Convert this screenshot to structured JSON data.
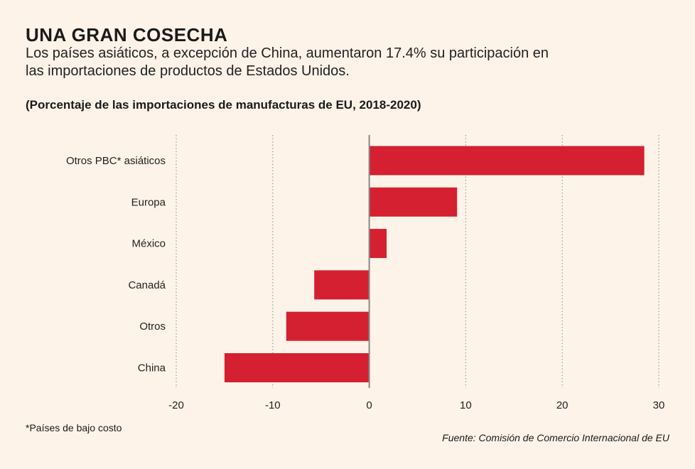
{
  "header": {
    "title": "UNA GRAN COSECHA",
    "subtitle": "Los países asiáticos, a excepción de China, aumentaron 17.4% su participación en las importaciones de productos de Estados Unidos."
  },
  "chart_data": {
    "type": "bar",
    "orientation": "horizontal",
    "title": "(Porcentaje de las importaciones de manufacturas de EU, 2018-2020)",
    "categories": [
      "Otros PBC* asiáticos",
      "Europa",
      "México",
      "Canadá",
      "Otros",
      "China"
    ],
    "values": [
      28.5,
      9.1,
      1.8,
      -5.7,
      -8.6,
      -15.0
    ],
    "xlim": [
      -20,
      30
    ],
    "xticks": [
      -20,
      -10,
      0,
      10,
      20,
      30
    ],
    "xtick_labels": [
      "-20",
      "-10",
      "0",
      "10",
      "20",
      "30"
    ],
    "grid": true,
    "bar_color": "#d42030"
  },
  "footer": {
    "footnote": "*Países de bajo costo",
    "source": "Fuente: Comisión de Comercio Internacional de EU"
  }
}
